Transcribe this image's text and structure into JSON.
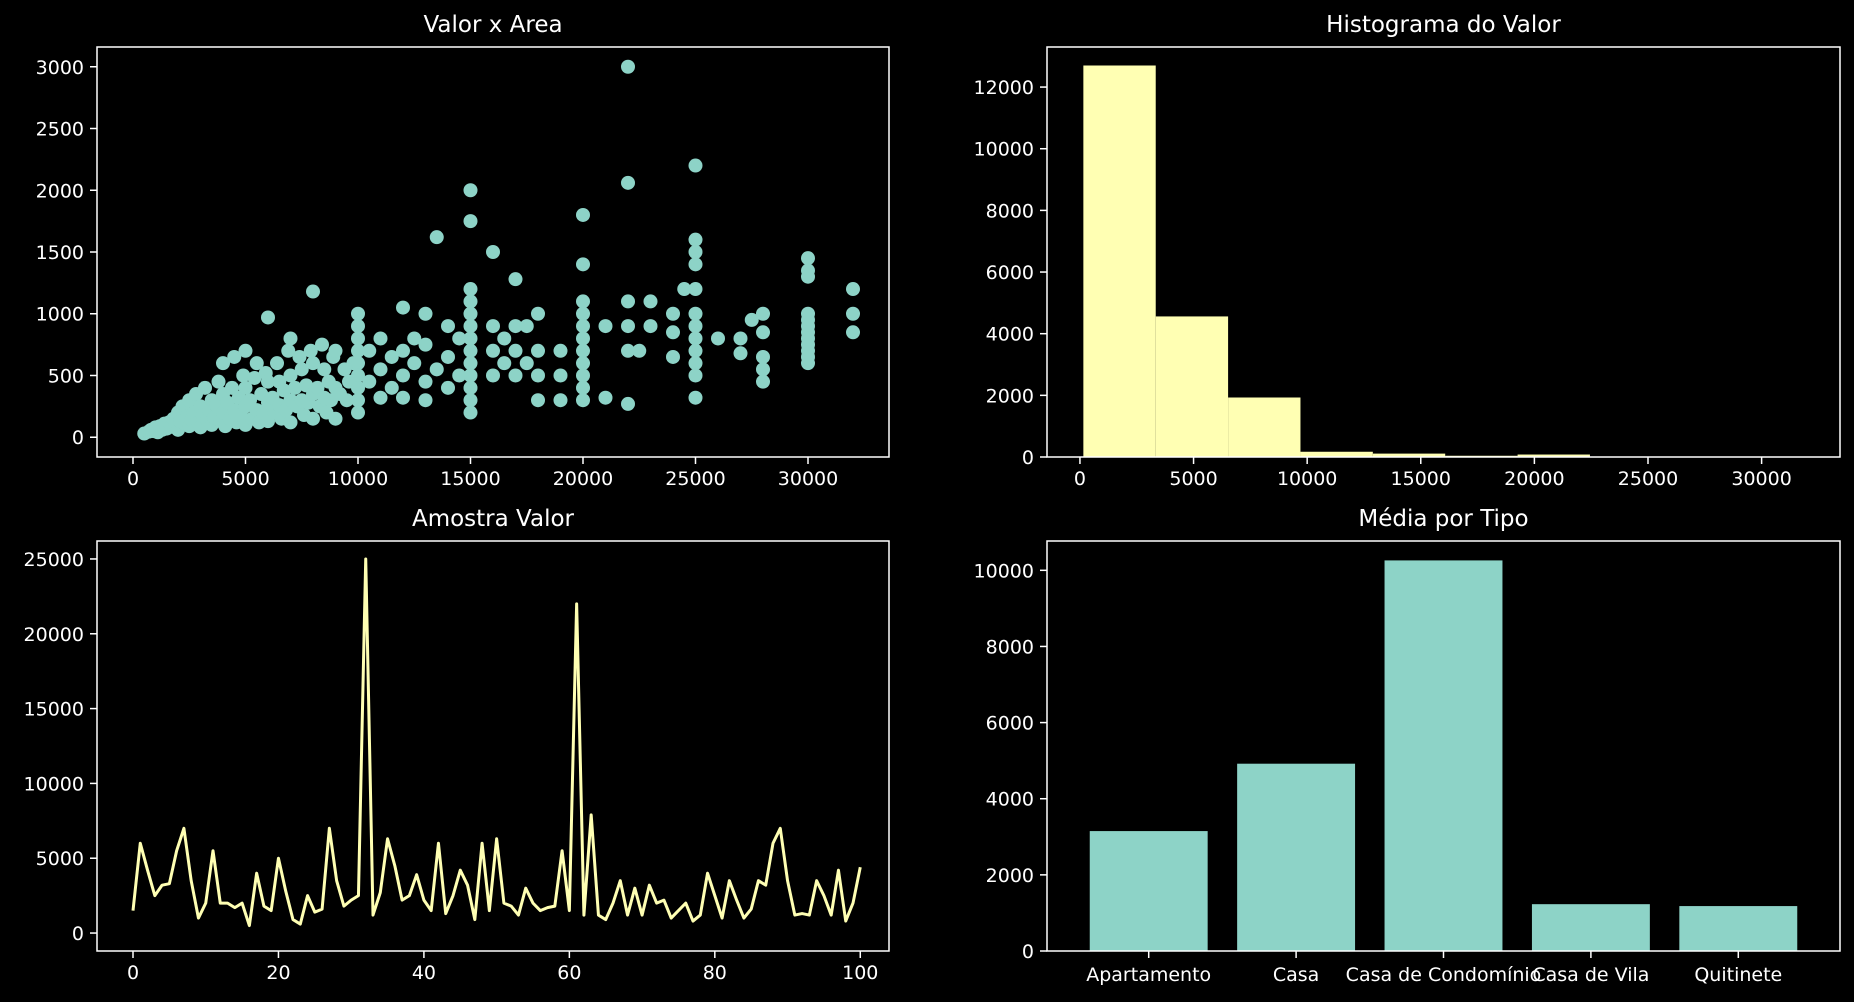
{
  "colors": {
    "background": "#000000",
    "foreground": "#ffffff",
    "teal": "#8dd3c7",
    "yellow": "#ffffb3"
  },
  "chart_data": [
    {
      "type": "scatter",
      "title": "Valor x Area",
      "xlim": [
        -1600,
        33600
      ],
      "ylim": [
        -160,
        3160
      ],
      "xticks": [
        0,
        5000,
        10000,
        15000,
        20000,
        25000,
        30000
      ],
      "yticks": [
        0,
        500,
        1000,
        1500,
        2000,
        2500,
        3000
      ],
      "color": "#8dd3c7",
      "points": [
        [
          500,
          30
        ],
        [
          700,
          45
        ],
        [
          800,
          60
        ],
        [
          900,
          50
        ],
        [
          1000,
          80
        ],
        [
          1100,
          40
        ],
        [
          1200,
          90
        ],
        [
          1300,
          60
        ],
        [
          1400,
          110
        ],
        [
          1500,
          70
        ],
        [
          1600,
          120
        ],
        [
          1700,
          85
        ],
        [
          1800,
          150
        ],
        [
          1900,
          95
        ],
        [
          2000,
          200
        ],
        [
          2000,
          60
        ],
        [
          2100,
          130
        ],
        [
          2200,
          250
        ],
        [
          2300,
          110
        ],
        [
          2400,
          170
        ],
        [
          2500,
          300
        ],
        [
          2500,
          90
        ],
        [
          2600,
          140
        ],
        [
          2700,
          200
        ],
        [
          2800,
          350
        ],
        [
          2900,
          120
        ],
        [
          3000,
          250
        ],
        [
          3000,
          80
        ],
        [
          3100,
          180
        ],
        [
          3200,
          400
        ],
        [
          3300,
          140
        ],
        [
          3400,
          220
        ],
        [
          3500,
          300
        ],
        [
          3500,
          100
        ],
        [
          3600,
          160
        ],
        [
          3700,
          260
        ],
        [
          3800,
          450
        ],
        [
          3900,
          130
        ],
        [
          4000,
          200
        ],
        [
          4000,
          350
        ],
        [
          4000,
          600
        ],
        [
          4100,
          90
        ],
        [
          4200,
          280
        ],
        [
          4300,
          150
        ],
        [
          4400,
          400
        ],
        [
          4500,
          220
        ],
        [
          4500,
          650
        ],
        [
          4600,
          120
        ],
        [
          4700,
          320
        ],
        [
          4800,
          180
        ],
        [
          4900,
          500
        ],
        [
          5000,
          250
        ],
        [
          5000,
          400
        ],
        [
          5000,
          700
        ],
        [
          5000,
          100
        ],
        [
          5200,
          300
        ],
        [
          5300,
          150
        ],
        [
          5400,
          480
        ],
        [
          5500,
          220
        ],
        [
          5500,
          600
        ],
        [
          5600,
          120
        ],
        [
          5700,
          350
        ],
        [
          5800,
          190
        ],
        [
          5900,
          520
        ],
        [
          6000,
          280
        ],
        [
          6000,
          450
        ],
        [
          6000,
          970
        ],
        [
          6000,
          130
        ],
        [
          6200,
          320
        ],
        [
          6300,
          200
        ],
        [
          6400,
          600
        ],
        [
          6500,
          260
        ],
        [
          6500,
          450
        ],
        [
          6600,
          150
        ],
        [
          6700,
          380
        ],
        [
          6800,
          220
        ],
        [
          6900,
          700
        ],
        [
          7000,
          300
        ],
        [
          7000,
          500
        ],
        [
          7000,
          800
        ],
        [
          7000,
          120
        ],
        [
          7200,
          400
        ],
        [
          7300,
          250
        ],
        [
          7400,
          650
        ],
        [
          7500,
          300
        ],
        [
          7500,
          550
        ],
        [
          7600,
          180
        ],
        [
          7700,
          420
        ],
        [
          7800,
          280
        ],
        [
          7900,
          700
        ],
        [
          8000,
          350
        ],
        [
          8000,
          600
        ],
        [
          8000,
          1180
        ],
        [
          8000,
          150
        ],
        [
          8200,
          400
        ],
        [
          8300,
          250
        ],
        [
          8400,
          750
        ],
        [
          8500,
          320
        ],
        [
          8500,
          550
        ],
        [
          8600,
          200
        ],
        [
          8700,
          450
        ],
        [
          8800,
          300
        ],
        [
          8900,
          650
        ],
        [
          9000,
          400
        ],
        [
          9000,
          700
        ],
        [
          9000,
          150
        ],
        [
          9200,
          350
        ],
        [
          9400,
          550
        ],
        [
          9500,
          300
        ],
        [
          9600,
          450
        ],
        [
          9800,
          600
        ],
        [
          10000,
          1000
        ],
        [
          10000,
          900
        ],
        [
          10000,
          800
        ],
        [
          10000,
          700
        ],
        [
          10000,
          600
        ],
        [
          10000,
          500
        ],
        [
          10000,
          400
        ],
        [
          10000,
          300
        ],
        [
          10000,
          200
        ],
        [
          10500,
          450
        ],
        [
          10500,
          700
        ],
        [
          11000,
          320
        ],
        [
          11000,
          800
        ],
        [
          11000,
          550
        ],
        [
          11500,
          400
        ],
        [
          11500,
          650
        ],
        [
          12000,
          1050
        ],
        [
          12000,
          700
        ],
        [
          12000,
          500
        ],
        [
          12000,
          320
        ],
        [
          12500,
          600
        ],
        [
          12500,
          800
        ],
        [
          13000,
          1000
        ],
        [
          13000,
          450
        ],
        [
          13000,
          750
        ],
        [
          13000,
          300
        ],
        [
          13500,
          1620
        ],
        [
          13500,
          550
        ],
        [
          14000,
          900
        ],
        [
          14000,
          650
        ],
        [
          14000,
          400
        ],
        [
          14500,
          800
        ],
        [
          14500,
          500
        ],
        [
          15000,
          2000
        ],
        [
          15000,
          1750
        ],
        [
          15000,
          1200
        ],
        [
          15000,
          1100
        ],
        [
          15000,
          1000
        ],
        [
          15000,
          900
        ],
        [
          15000,
          800
        ],
        [
          15000,
          700
        ],
        [
          15000,
          600
        ],
        [
          15000,
          500
        ],
        [
          15000,
          400
        ],
        [
          15000,
          300
        ],
        [
          15000,
          200
        ],
        [
          16000,
          1500
        ],
        [
          16000,
          900
        ],
        [
          16000,
          700
        ],
        [
          16000,
          500
        ],
        [
          16500,
          800
        ],
        [
          16500,
          600
        ],
        [
          17000,
          1280
        ],
        [
          17000,
          900
        ],
        [
          17000,
          700
        ],
        [
          17000,
          500
        ],
        [
          17500,
          900
        ],
        [
          17500,
          600
        ],
        [
          18000,
          1000
        ],
        [
          18000,
          700
        ],
        [
          18000,
          500
        ],
        [
          18000,
          300
        ],
        [
          19000,
          700
        ],
        [
          19000,
          500
        ],
        [
          19000,
          300
        ],
        [
          20000,
          1800
        ],
        [
          20000,
          1400
        ],
        [
          20000,
          1100
        ],
        [
          20000,
          1000
        ],
        [
          20000,
          900
        ],
        [
          20000,
          800
        ],
        [
          20000,
          700
        ],
        [
          20000,
          600
        ],
        [
          20000,
          500
        ],
        [
          20000,
          400
        ],
        [
          20000,
          300
        ],
        [
          21000,
          900
        ],
        [
          21000,
          320
        ],
        [
          22000,
          3000
        ],
        [
          22000,
          2060
        ],
        [
          22000,
          1100
        ],
        [
          22000,
          900
        ],
        [
          22000,
          700
        ],
        [
          22000,
          270
        ],
        [
          22500,
          700
        ],
        [
          23000,
          1100
        ],
        [
          23000,
          900
        ],
        [
          24000,
          1000
        ],
        [
          24000,
          850
        ],
        [
          24000,
          650
        ],
        [
          24500,
          1200
        ],
        [
          25000,
          2200
        ],
        [
          25000,
          1600
        ],
        [
          25000,
          1500
        ],
        [
          25000,
          1400
        ],
        [
          25000,
          1200
        ],
        [
          25000,
          1000
        ],
        [
          25000,
          900
        ],
        [
          25000,
          800
        ],
        [
          25000,
          700
        ],
        [
          25000,
          600
        ],
        [
          25000,
          500
        ],
        [
          25000,
          320
        ],
        [
          26000,
          800
        ],
        [
          27000,
          800
        ],
        [
          27000,
          680
        ],
        [
          27500,
          950
        ],
        [
          28000,
          1000
        ],
        [
          28000,
          850
        ],
        [
          28000,
          650
        ],
        [
          28000,
          550
        ],
        [
          28000,
          450
        ],
        [
          30000,
          1450
        ],
        [
          30000,
          1350
        ],
        [
          30000,
          1300
        ],
        [
          30000,
          1000
        ],
        [
          30000,
          950
        ],
        [
          30000,
          900
        ],
        [
          30000,
          850
        ],
        [
          30000,
          800
        ],
        [
          30000,
          750
        ],
        [
          30000,
          700
        ],
        [
          30000,
          650
        ],
        [
          30000,
          600
        ],
        [
          32000,
          1200
        ],
        [
          32000,
          1000
        ],
        [
          32000,
          850
        ]
      ]
    },
    {
      "type": "bar",
      "title": "Histograma do Valor",
      "xlim": [
        -1450,
        33450
      ],
      "ylim": [
        0,
        13300
      ],
      "xticks": [
        0,
        5000,
        10000,
        15000,
        20000,
        25000,
        30000
      ],
      "yticks": [
        0,
        2000,
        4000,
        6000,
        8000,
        10000,
        12000
      ],
      "color": "#ffffb3",
      "bins": [
        150,
        3335,
        6520,
        9705,
        12890,
        16075,
        19260,
        22445,
        25630,
        28815,
        32000
      ],
      "counts": [
        12700,
        4560,
        1930,
        170,
        110,
        40,
        80,
        15,
        10,
        10
      ]
    },
    {
      "type": "line",
      "title": "Amostra Valor",
      "xlim": [
        -4.95,
        103.95
      ],
      "ylim": [
        -1200,
        26200
      ],
      "xticks": [
        0,
        20,
        40,
        60,
        80,
        100
      ],
      "yticks": [
        0,
        5000,
        10000,
        15000,
        20000,
        25000
      ],
      "color": "#ffffb3",
      "values": [
        1500,
        6000,
        4200,
        2500,
        3200,
        3300,
        5500,
        7000,
        3500,
        1000,
        2000,
        5500,
        2000,
        2000,
        1700,
        2000,
        500,
        4000,
        1800,
        1500,
        5000,
        2800,
        900,
        600,
        2500,
        1400,
        1600,
        7000,
        3500,
        1800,
        2200,
        2500,
        25000,
        1200,
        2700,
        6300,
        4500,
        2200,
        2500,
        3900,
        2200,
        1500,
        6000,
        1300,
        2500,
        4200,
        3200,
        900,
        6000,
        1500,
        6300,
        2000,
        1800,
        1200,
        3000,
        2000,
        1500,
        1700,
        1800,
        5500,
        1500,
        22000,
        1200,
        7900,
        1200,
        900,
        2000,
        3500,
        1200,
        3000,
        1200,
        3200,
        2000,
        2200,
        1000,
        1500,
        2000,
        800,
        1200,
        4000,
        2500,
        1000,
        3500,
        2200,
        1000,
        1600,
        3500,
        3200,
        6000,
        7000,
        3500,
        1200,
        1300,
        1200,
        3500,
        2500,
        1200,
        4200,
        800,
        2000,
        4400
      ]
    },
    {
      "type": "bar",
      "title": "Média por Tipo",
      "categories": [
        "Apartamento",
        "Casa",
        "Casa de Condomínio",
        "Casa de Vila",
        "Quitinete"
      ],
      "values": [
        3150,
        4920,
        10260,
        1230,
        1180
      ],
      "ylim": [
        0,
        10770
      ],
      "yticks": [
        0,
        2000,
        4000,
        6000,
        8000,
        10000
      ],
      "color": "#8dd3c7"
    }
  ]
}
